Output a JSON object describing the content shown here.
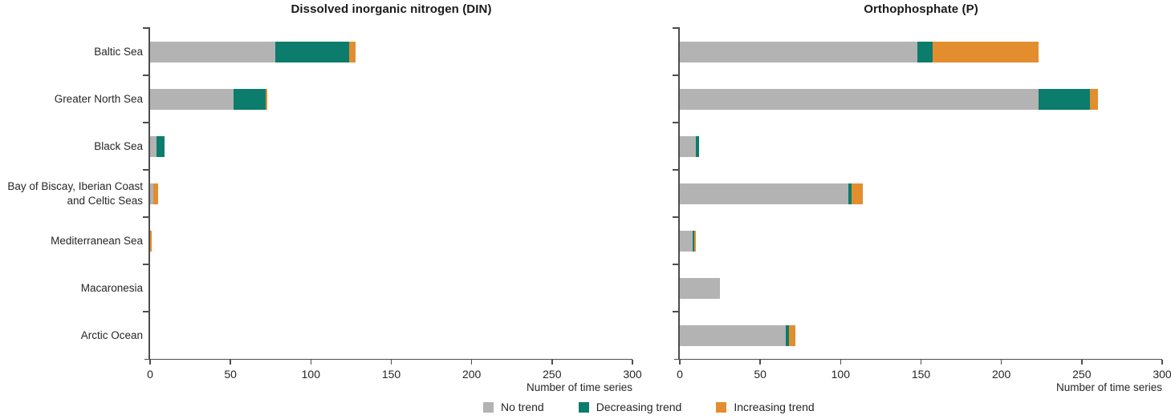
{
  "legend": {
    "items": [
      {
        "label": "No trend",
        "color": "#b3b3b3"
      },
      {
        "label": "Decreasing trend",
        "color": "#0c7c6c"
      },
      {
        "label": "Increasing trend",
        "color": "#e28e2e"
      }
    ]
  },
  "chart_data": [
    {
      "type": "bar",
      "orientation": "horizontal",
      "stacked": true,
      "title": "Dissolved inorganic nitrogen (DIN)",
      "xlabel": "Number of time series",
      "xlim": [
        0,
        300
      ],
      "xticks": [
        0,
        50,
        100,
        150,
        200,
        250,
        300
      ],
      "categories": [
        "Baltic Sea",
        "Greater North Sea",
        "Black Sea",
        "Bay of Biscay, Iberian Coast and Celtic Seas",
        "Mediterranean Sea",
        "Macaronesia",
        "Arctic Ocean"
      ],
      "series": [
        {
          "name": "No trend",
          "color": "#b3b3b3",
          "values": [
            78,
            52,
            4,
            2,
            0,
            0,
            0
          ]
        },
        {
          "name": "Decreasing trend",
          "color": "#0c7c6c",
          "values": [
            46,
            20,
            5,
            0,
            0,
            0,
            0
          ]
        },
        {
          "name": "Increasing trend",
          "color": "#e28e2e",
          "values": [
            4,
            1,
            0,
            3,
            1,
            0,
            0
          ]
        }
      ]
    },
    {
      "type": "bar",
      "orientation": "horizontal",
      "stacked": true,
      "title": "Orthophosphate (P)",
      "xlabel": "Number of time series",
      "xlim": [
        0,
        300
      ],
      "xticks": [
        0,
        50,
        100,
        150,
        200,
        250,
        300
      ],
      "categories": [
        "Baltic Sea",
        "Greater North Sea",
        "Black Sea",
        "Bay of Biscay, Iberian Coast and Celtic Seas",
        "Mediterranean Sea",
        "Macaronesia",
        "Arctic Ocean"
      ],
      "series": [
        {
          "name": "No trend",
          "color": "#b3b3b3",
          "values": [
            148,
            223,
            10,
            105,
            8,
            25,
            66
          ]
        },
        {
          "name": "Decreasing trend",
          "color": "#0c7c6c",
          "values": [
            9,
            32,
            2,
            2,
            1,
            0,
            2
          ]
        },
        {
          "name": "Increasing trend",
          "color": "#e28e2e",
          "values": [
            66,
            5,
            0,
            7,
            1,
            0,
            4
          ]
        }
      ]
    }
  ]
}
